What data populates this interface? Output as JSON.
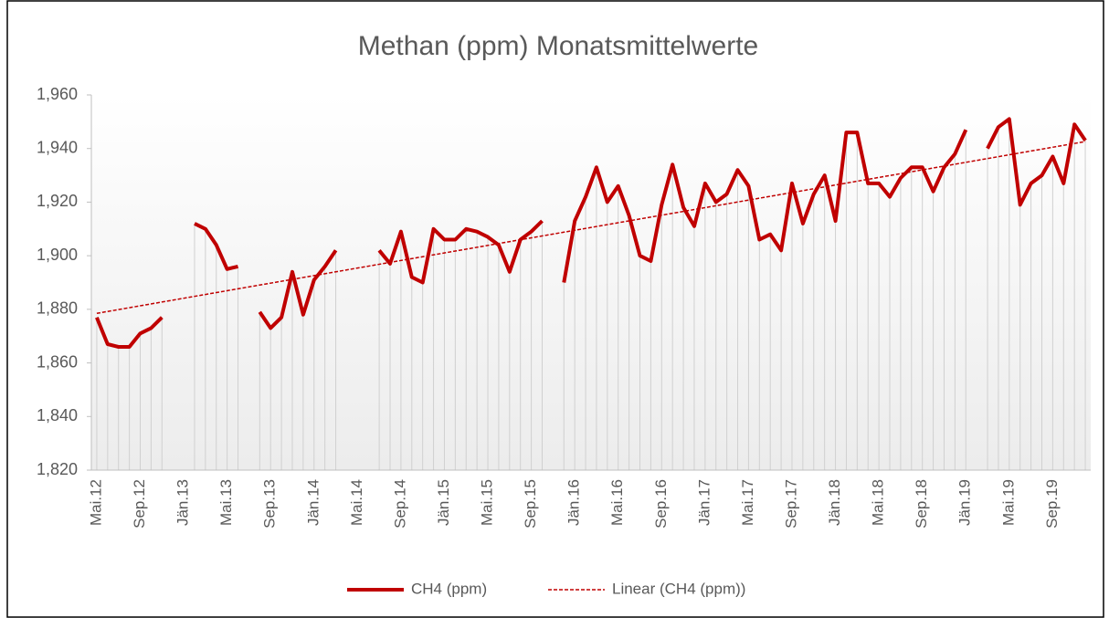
{
  "chart_data": {
    "type": "line",
    "title": "Methan (ppm) Monatsmittelwerte",
    "categories": [
      "Mai.12",
      null,
      null,
      null,
      "Sep.12",
      null,
      null,
      null,
      "Jän.13",
      null,
      null,
      null,
      "Mai.13",
      null,
      null,
      null,
      "Sep.13",
      null,
      null,
      null,
      "Jän.14",
      null,
      null,
      null,
      "Mai.14",
      null,
      null,
      null,
      "Sep.14",
      null,
      null,
      null,
      "Jän.15",
      null,
      null,
      null,
      "Mai.15",
      null,
      null,
      null,
      "Sep.15",
      null,
      null,
      null,
      "Jän.16",
      null,
      null,
      null,
      "Mai.16",
      null,
      null,
      null,
      "Sep.16",
      null,
      null,
      null,
      "Jän.17",
      null,
      null,
      null,
      "Mai.17",
      null,
      null,
      null,
      "Sep.17",
      null,
      null,
      null,
      "Jän.18",
      null,
      null,
      null,
      "Mai.18",
      null,
      null,
      null,
      "Sep.18",
      null,
      null,
      null,
      "Jän.19",
      null,
      null,
      null,
      "Mai.19",
      null,
      null,
      null,
      "Sep.19",
      null,
      null,
      null
    ],
    "series": [
      {
        "name": "CH4 (ppm)",
        "color": "#c00000",
        "values": [
          1877,
          1867,
          1866,
          1866,
          1871,
          1873,
          1877,
          null,
          null,
          1912,
          1910,
          1904,
          1895,
          1896,
          null,
          1879,
          1873,
          1877,
          1894,
          1878,
          1891,
          1896,
          1902,
          null,
          null,
          null,
          1902,
          1897,
          1909,
          1892,
          1890,
          1910,
          1906,
          1906,
          1910,
          1909,
          1907,
          1904,
          1894,
          1906,
          1909,
          1913,
          null,
          1890,
          1913,
          1922,
          1933,
          1920,
          1926,
          1915,
          1900,
          1898,
          1919,
          1934,
          1918,
          1911,
          1927,
          1920,
          1923,
          1932,
          1926,
          1906,
          1908,
          1902,
          1927,
          1912,
          1923,
          1930,
          1913,
          1946,
          1946,
          1927,
          1927,
          1922,
          1929,
          1933,
          1933,
          1924,
          1933,
          1938,
          1947,
          null,
          1940,
          1948,
          1951,
          1919,
          1927,
          1930,
          1937,
          1927,
          1949,
          1943
        ]
      }
    ],
    "trendline": {
      "name": "Linear (CH4 (ppm))",
      "color": "#c00000",
      "values": [
        1878.5,
        1942.6
      ]
    },
    "ylim": [
      1820,
      1960
    ],
    "yticks": [
      {
        "value": 1820,
        "label": "1,820"
      },
      {
        "value": 1840,
        "label": "1,840"
      },
      {
        "value": 1860,
        "label": "1,860"
      },
      {
        "value": 1880,
        "label": "1,880"
      },
      {
        "value": 1900,
        "label": "1,900"
      },
      {
        "value": 1920,
        "label": "1,920"
      },
      {
        "value": 1940,
        "label": "1,940"
      },
      {
        "value": 1960,
        "label": "1,960"
      }
    ],
    "drop_lines": true
  }
}
